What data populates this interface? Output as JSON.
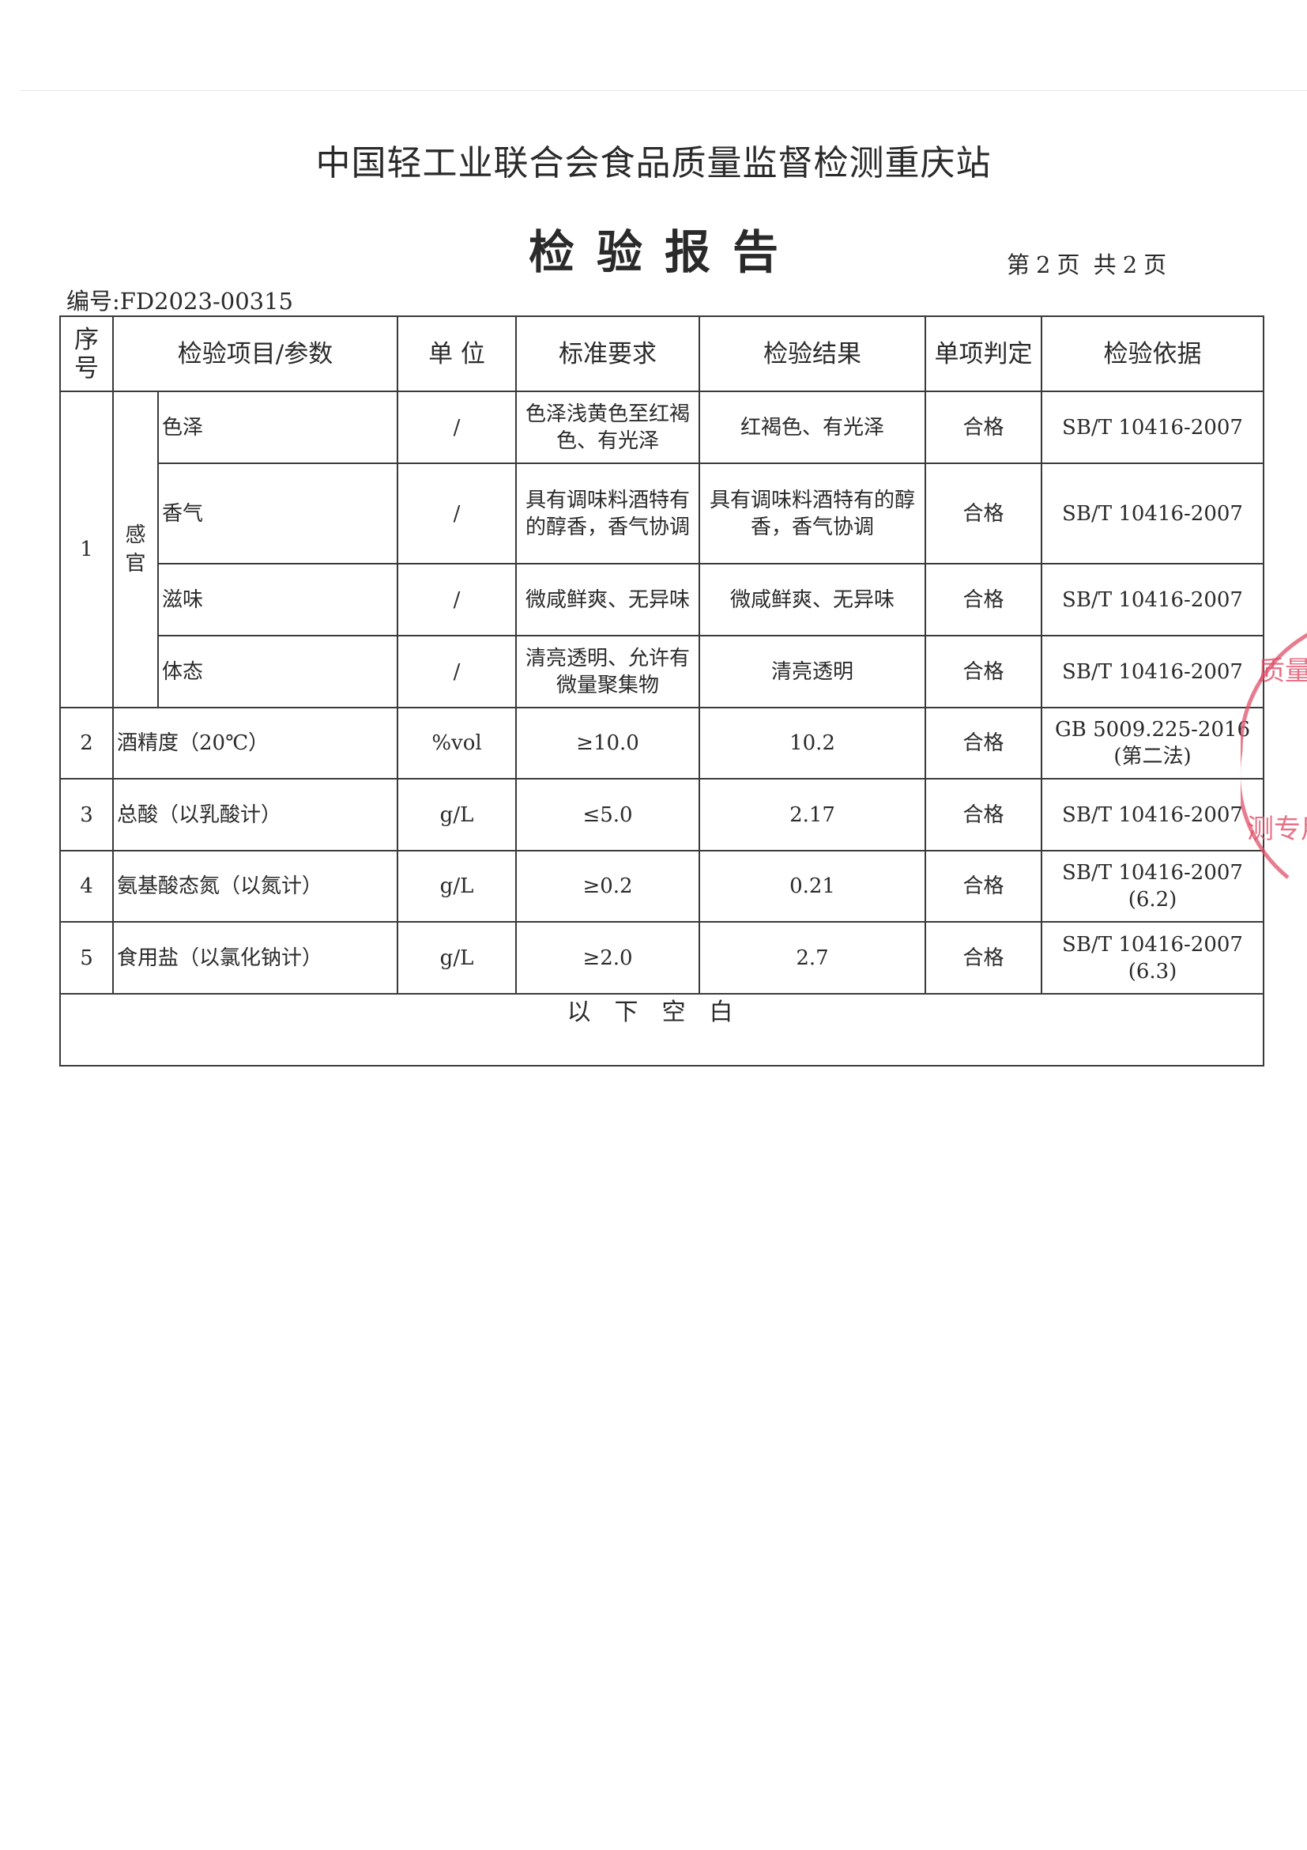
{
  "header": {
    "organization": "中国轻工业联合会食品质量监督检测重庆站",
    "title": "检验报告",
    "page_info": {
      "prefix": "第",
      "current": "2",
      "middle": "页 共",
      "total": "2",
      "suffix": "页"
    },
    "document_number": "编号:FD2023-00315"
  },
  "table": {
    "columns": [
      "序号",
      "检验项目/参数",
      "单 位",
      "标准要求",
      "检验结果",
      "单项判定",
      "检验依据"
    ],
    "group_1": {
      "seq": "1",
      "category": "感官",
      "rows": [
        {
          "item": "色泽",
          "unit": "/",
          "requirement": "色泽浅黄色至红褐色、有光泽",
          "result": "红褐色、有光泽",
          "verdict": "合格",
          "basis": "SB/T 10416-2007"
        },
        {
          "item": "香气",
          "unit": "/",
          "requirement": "具有调味料酒特有的醇香，香气协调",
          "result": "具有调味料酒特有的醇香，香气协调",
          "verdict": "合格",
          "basis": "SB/T 10416-2007"
        },
        {
          "item": "滋味",
          "unit": "/",
          "requirement": "微咸鲜爽、无异味",
          "result": "微咸鲜爽、无异味",
          "verdict": "合格",
          "basis": "SB/T 10416-2007"
        },
        {
          "item": "体态",
          "unit": "/",
          "requirement": "清亮透明、允许有微量聚集物",
          "result": "清亮透明",
          "verdict": "合格",
          "basis": "SB/T 10416-2007"
        }
      ]
    },
    "rows": [
      {
        "seq": "2",
        "item": "酒精度（20℃）",
        "unit": "%vol",
        "requirement": "≥10.0",
        "result": "10.2",
        "verdict": "合格",
        "basis": "GB 5009.225-2016",
        "basis_note": "(第二法)"
      },
      {
        "seq": "3",
        "item": "总酸（以乳酸计）",
        "unit": "g/L",
        "requirement": "≤5.0",
        "result": "2.17",
        "verdict": "合格",
        "basis": "SB/T 10416-2007",
        "basis_note": ""
      },
      {
        "seq": "4",
        "item": "氨基酸态氮（以氮计）",
        "unit": "g/L",
        "requirement": "≥0.2",
        "result": "0.21",
        "verdict": "合格",
        "basis": "SB/T 10416-2007",
        "basis_note": "(6.2)"
      },
      {
        "seq": "5",
        "item": "食用盐（以氯化钠计）",
        "unit": "g/L",
        "requirement": "≥2.0",
        "result": "2.7",
        "verdict": "合格",
        "basis": "SB/T 10416-2007",
        "basis_note": "(6.3)"
      }
    ],
    "footer": "以下空白"
  },
  "stamp": {
    "color": "#e0506a",
    "text": "质量监督检测专用"
  }
}
